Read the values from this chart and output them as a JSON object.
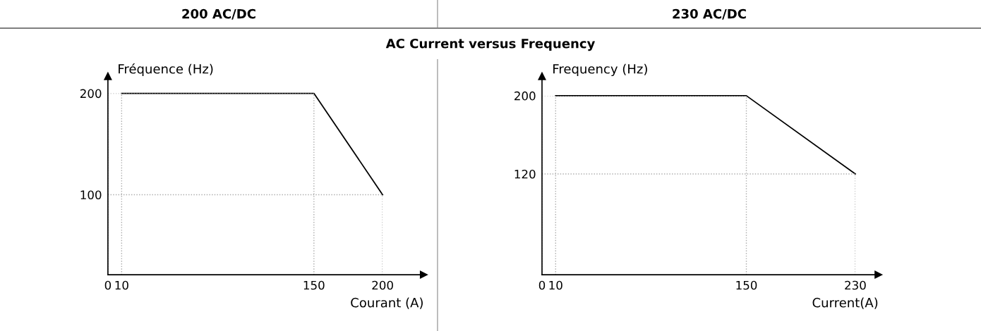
{
  "chart_data": [
    {
      "type": "line",
      "title": "200 AC/DC",
      "subtitle": "AC Current versus Frequency",
      "xlabel": "Courant (A)",
      "ylabel": "Fréquence (Hz)",
      "x": [
        10,
        150,
        200
      ],
      "series": [
        {
          "color": "#000000",
          "values": [
            200,
            200,
            100
          ]
        }
      ],
      "xlim": [
        0,
        230
      ],
      "ylim": [
        21,
        217
      ],
      "xticks": [
        0,
        10,
        150,
        200
      ],
      "yticks": [
        100,
        200
      ],
      "grid": true
    },
    {
      "type": "line",
      "title": "230 AC/DC",
      "xlabel": "Current(A)",
      "ylabel": "Frequency (Hz)",
      "x": [
        10,
        150,
        230
      ],
      "series": [
        {
          "color": "#000000",
          "values": [
            200,
            200,
            120
          ]
        }
      ],
      "xlim": [
        0,
        247
      ],
      "ylim": [
        17,
        220
      ],
      "xticks": [
        0,
        10,
        150,
        230
      ],
      "yticks": [
        120,
        200
      ],
      "grid": true
    }
  ]
}
